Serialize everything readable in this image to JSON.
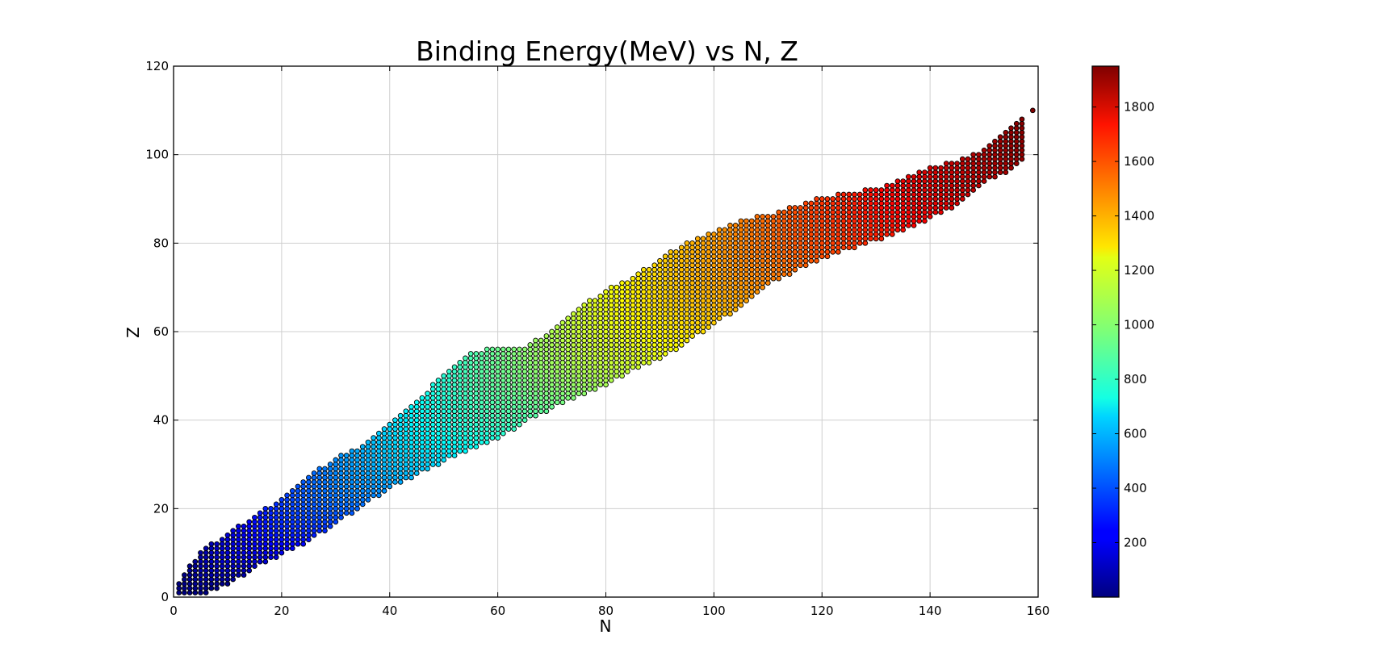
{
  "chart_data": {
    "type": "scatter",
    "title": "Binding Energy(MeV) vs N, Z",
    "xlabel": "N",
    "ylabel": "Z",
    "xlim": [
      0,
      160
    ],
    "ylim": [
      0,
      120
    ],
    "xticks": [
      0,
      20,
      40,
      60,
      80,
      100,
      120,
      140,
      160
    ],
    "yticks": [
      0,
      20,
      40,
      60,
      80,
      100,
      120
    ],
    "grid": true,
    "marker": "circle",
    "colormap": "jet",
    "colorbar": {
      "range": [
        0,
        1950
      ],
      "ticks": [
        200,
        400,
        600,
        800,
        1000,
        1200,
        1400,
        1600,
        1800
      ],
      "placement": "right"
    },
    "series": [
      {
        "description_of_band": "Z as a function of N: lower and upper edge of the nuclide band",
        "x": [
          1,
          5,
          10,
          15,
          20,
          25,
          30,
          35,
          40,
          45,
          50,
          55,
          60,
          65,
          70,
          75,
          80,
          85,
          90,
          95,
          100,
          105,
          110,
          115,
          120,
          125,
          130,
          135,
          140,
          145,
          150,
          155,
          157
        ],
        "zmin": [
          1,
          1,
          3,
          7,
          10,
          13,
          17,
          21,
          25,
          28,
          31,
          34,
          36,
          40,
          43,
          46,
          48,
          52,
          54,
          58,
          62,
          66,
          71,
          74,
          77,
          79,
          81,
          83,
          86,
          89,
          94,
          97,
          99
        ],
        "zmax": [
          3,
          10,
          14,
          18,
          22,
          27,
          31,
          34,
          39,
          44,
          50,
          55,
          56,
          56,
          60,
          65,
          69,
          72,
          76,
          80,
          82,
          85,
          86,
          88,
          90,
          91,
          92,
          94,
          97,
          98,
          101,
          106,
          108
        ]
      }
    ],
    "isolated_points": [
      {
        "x": 159,
        "y": 110
      }
    ]
  }
}
